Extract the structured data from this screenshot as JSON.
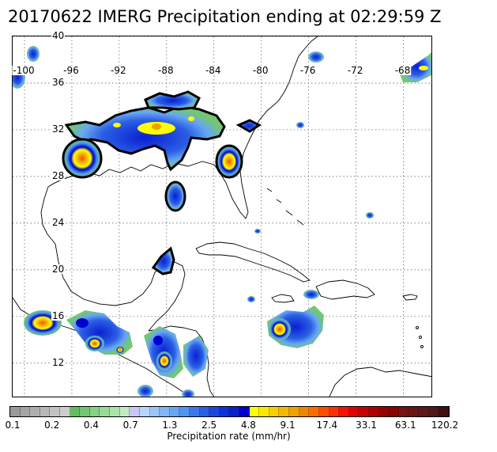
{
  "title": "20170622 IMERG Precipitation ending at 02:29:59 Z",
  "map": {
    "lon_min": -101,
    "lon_max": -65.5,
    "lat_min": 9,
    "lat_max": 40,
    "lat_labels": [
      "40",
      "36",
      "32",
      "28",
      "24",
      "20",
      "16",
      "12"
    ],
    "lon_labels": [
      "-100",
      "-96",
      "-92",
      "-88",
      "-84",
      "-80",
      "-76",
      "-72",
      "-68"
    ],
    "grid": "dotted every 4 degrees",
    "features": [
      "Southern United States coastline",
      "Florida",
      "Gulf of Mexico",
      "Yucatan Peninsula",
      "Central America",
      "Cuba",
      "Hispaniola",
      "Jamaica",
      "Puerto Rico",
      "Caribbean Sea"
    ]
  },
  "colorbar": {
    "ticks": [
      "0.1",
      "0.2",
      "0.4",
      "0.7",
      "1.3",
      "2.5",
      "4.8",
      "9.1",
      "17.4",
      "33.1",
      "63.1",
      "120.2"
    ],
    "label": "Precipitation rate (mm/hr)",
    "colors": [
      "#9a9a9a",
      "#a4a4a4",
      "#aeaeae",
      "#b8b8b8",
      "#c2c2c2",
      "#cccccc",
      "#5fbf5f",
      "#72c872",
      "#85d185",
      "#98da98",
      "#abe3ab",
      "#c0ecc0",
      "#c9c6f5",
      "#b6d6fb",
      "#9cc6f8",
      "#82b6f5",
      "#68a6f2",
      "#4e96ef",
      "#3a78ea",
      "#2a5ee4",
      "#1d46de",
      "#1230d8",
      "#0a1fd2",
      "#0000cc",
      "#ffff00",
      "#fce800",
      "#f8d000",
      "#f4b800",
      "#f0a000",
      "#ec8800",
      "#ff6a00",
      "#ff4d00",
      "#ff2f00",
      "#f71100",
      "#e00000",
      "#c80000",
      "#b00000",
      "#980000",
      "#880000",
      "#7a1010",
      "#6c1414",
      "#5e1818",
      "#501818",
      "#401010"
    ]
  }
}
